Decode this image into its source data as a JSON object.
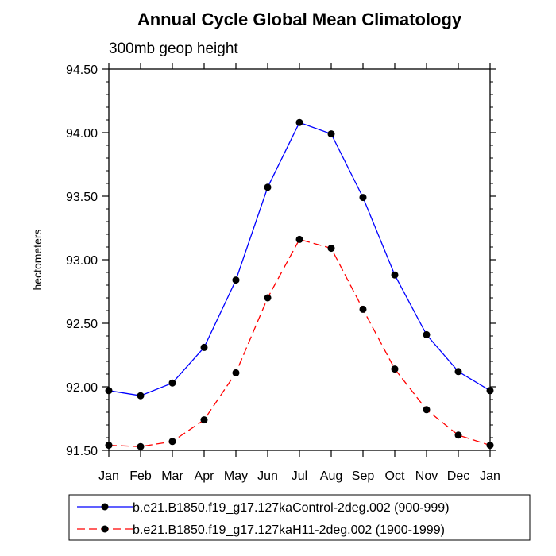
{
  "chart_data": {
    "type": "line",
    "title": "Annual Cycle Global Mean Climatology",
    "subtitle": "300mb geop height",
    "ylabel": "hectometers",
    "xlabel": "",
    "categories": [
      "Jan",
      "Feb",
      "Mar",
      "Apr",
      "May",
      "Jun",
      "Jul",
      "Aug",
      "Sep",
      "Oct",
      "Nov",
      "Dec",
      "Jan"
    ],
    "ylim": [
      91.5,
      94.5
    ],
    "yticks": [
      91.5,
      92.0,
      92.5,
      93.0,
      93.5,
      94.0,
      94.5
    ],
    "ytick_labels": [
      "91.50",
      "92.00",
      "92.50",
      "93.00",
      "93.50",
      "94.00",
      "94.50"
    ],
    "series": [
      {
        "name": "b.e21.B1850.f19_g17.127kaControl-2deg.002 (900-999)",
        "color": "#0000ff",
        "dash": "solid",
        "values": [
          91.97,
          91.93,
          92.03,
          92.31,
          92.84,
          93.57,
          94.08,
          93.99,
          93.49,
          92.88,
          92.41,
          92.12,
          91.97
        ]
      },
      {
        "name": "b.e21.B1850.f19_g17.127kaH11-2deg.002 (1900-1999)",
        "color": "#ff0000",
        "dash": "dashed",
        "values": [
          91.54,
          91.53,
          91.57,
          91.74,
          92.11,
          92.7,
          93.16,
          93.09,
          92.61,
          92.14,
          91.82,
          91.62,
          91.54
        ]
      }
    ],
    "legend_position": "bottom"
  }
}
